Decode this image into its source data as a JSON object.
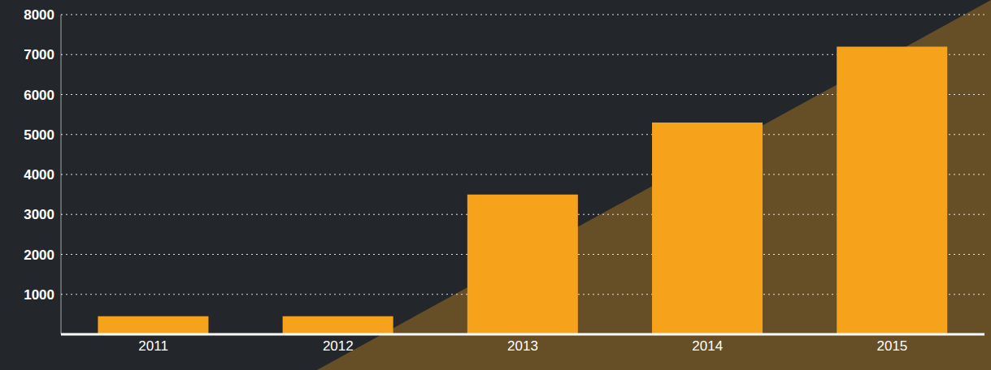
{
  "chart_data": {
    "type": "bar",
    "categories": [
      "2011",
      "2012",
      "2013",
      "2014",
      "2015"
    ],
    "values": [
      450,
      450,
      3500,
      5300,
      7200
    ],
    "color": "#f7a21b",
    "ylim": [
      0,
      8000
    ],
    "yticks": [
      1000,
      2000,
      3000,
      4000,
      5000,
      6000,
      7000,
      8000
    ],
    "grid": true
  }
}
